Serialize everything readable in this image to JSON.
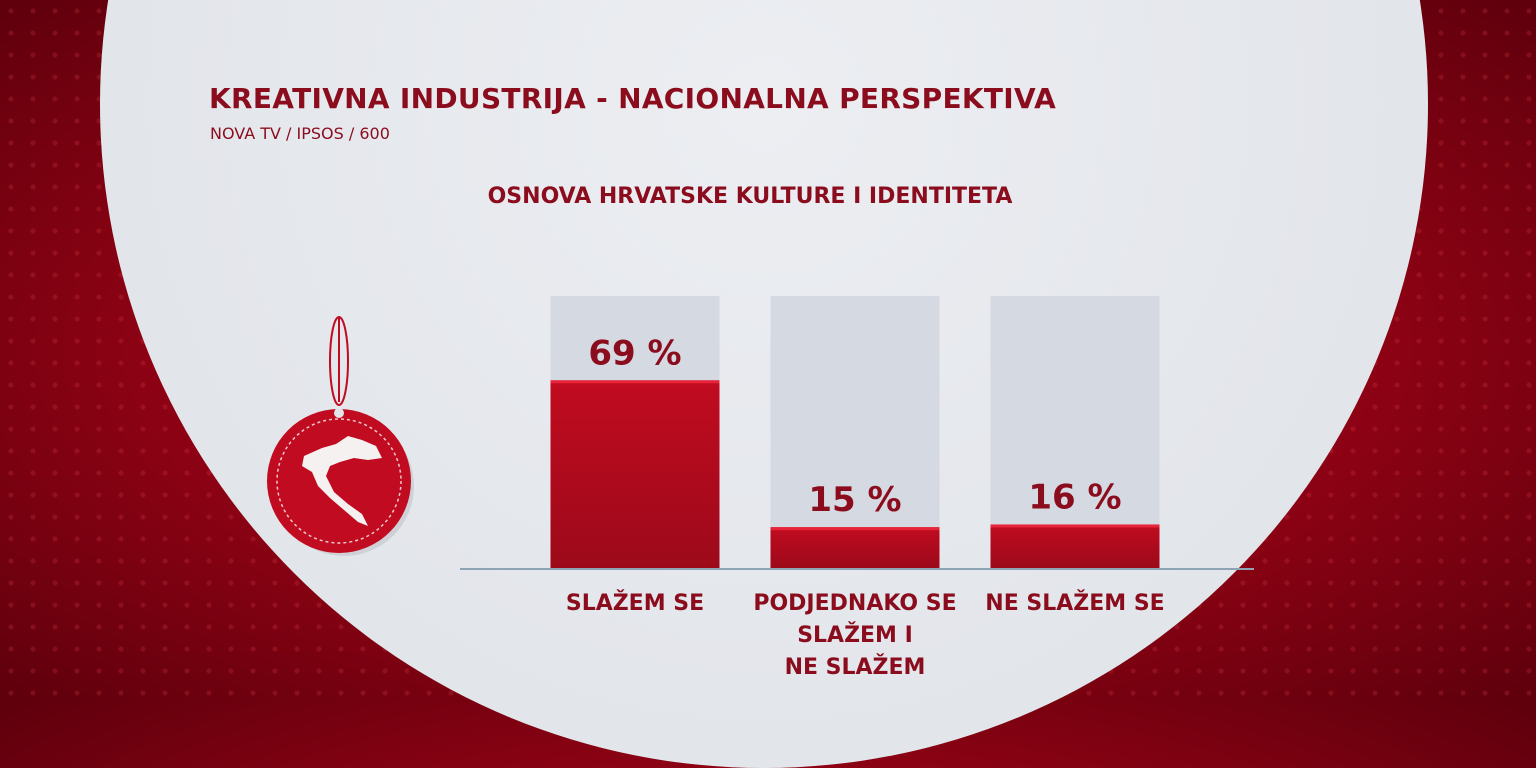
{
  "header": {
    "title": "KREATIVNA INDUSTRIJA - NACIONALNA PERSPEKTIVA",
    "source": "NOVA TV / IPSOS / 600"
  },
  "chart_data": {
    "type": "bar",
    "title": "OSNOVA HRVATSKE KULTURE I IDENTITETA",
    "categories": [
      "SLAŽEM SE",
      "PODJEDNAKO SE SLAŽEM I NE SLAŽEM",
      "NE SLAŽEM SE"
    ],
    "category_lines": [
      [
        "SLAŽEM SE"
      ],
      [
        "PODJEDNAKO SE",
        "SLAŽEM I",
        "NE SLAŽEM"
      ],
      [
        "NE SLAŽEM SE"
      ]
    ],
    "values": [
      69,
      15,
      16
    ],
    "value_labels": [
      "69 %",
      "15 %",
      "16 %"
    ],
    "unit": "%",
    "ylim": [
      0,
      100
    ],
    "xlabel": "",
    "ylabel": "",
    "grid": false,
    "legend": "none"
  },
  "colors": {
    "brand_red": "#c10b20",
    "dark_red": "#8a0c1d",
    "track": "#d5d9e1",
    "axis": "#8ea4b4"
  },
  "icons": {
    "ornament": "croatia-map-tag-icon"
  }
}
